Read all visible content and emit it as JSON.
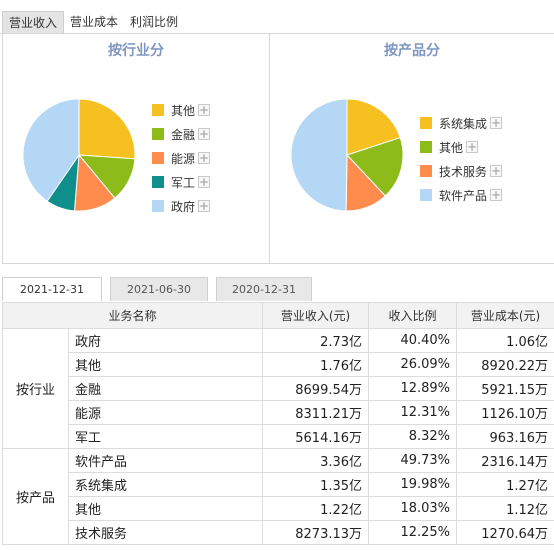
{
  "top_tabs": [
    "营业收入",
    "营业成本",
    "利润比例"
  ],
  "date_tabs": [
    "2021-12-31",
    "2021-06-30",
    "2020-12-31"
  ],
  "table": {
    "headers": [
      "业务名称",
      "营业收入(元)",
      "收入比例",
      "营业成本(元)"
    ],
    "groups": [
      {
        "label": "按行业",
        "rows": [
          [
            "政府",
            "2.73亿",
            "40.40%",
            "1.06亿"
          ],
          [
            "其他",
            "1.76亿",
            "26.09%",
            "8920.22万"
          ],
          [
            "金融",
            "8699.54万",
            "12.89%",
            "5921.15万"
          ],
          [
            "能源",
            "8311.21万",
            "12.31%",
            "1126.10万"
          ],
          [
            "军工",
            "5614.16万",
            "8.32%",
            "963.16万"
          ]
        ]
      },
      {
        "label": "按产品",
        "rows": [
          [
            "软件产品",
            "3.36亿",
            "49.73%",
            "2316.14万"
          ],
          [
            "系统集成",
            "1.35亿",
            "19.98%",
            "1.27亿"
          ],
          [
            "其他",
            "1.22亿",
            "18.03%",
            "1.12亿"
          ],
          [
            "技术服务",
            "8273.13万",
            "12.25%",
            "1270.64万"
          ]
        ]
      }
    ]
  },
  "chart_data": [
    {
      "type": "pie",
      "title": "按行业分",
      "slices": [
        {
          "label": "其他",
          "value": 26.09,
          "color": "#f5c020"
        },
        {
          "label": "金融",
          "value": 12.89,
          "color": "#8dbb1a"
        },
        {
          "label": "能源",
          "value": 12.31,
          "color": "#ff8c4c"
        },
        {
          "label": "军工",
          "value": 8.32,
          "color": "#0f8f8c"
        },
        {
          "label": "政府",
          "value": 40.4,
          "color": "#b3d7f5"
        }
      ],
      "legend_placement": "right"
    },
    {
      "type": "pie",
      "title": "按产品分",
      "slices": [
        {
          "label": "系统集成",
          "value": 19.98,
          "color": "#f5c020"
        },
        {
          "label": "其他",
          "value": 18.03,
          "color": "#8dbb1a"
        },
        {
          "label": "技术服务",
          "value": 12.25,
          "color": "#ff8c4c"
        },
        {
          "label": "软件产品",
          "value": 49.73,
          "color": "#b3d7f5"
        }
      ],
      "legend_placement": "right"
    }
  ]
}
